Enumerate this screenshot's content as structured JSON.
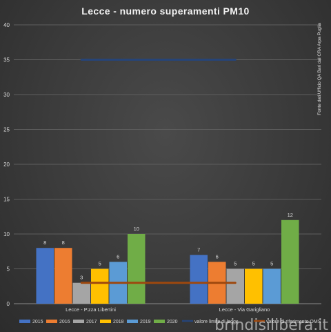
{
  "chart_data": {
    "type": "bar",
    "title": "Lecce - numero superamenti PM10",
    "categories": [
      "Lecce - P.zza Libertini",
      "Lecce - Via Garigliano"
    ],
    "series": [
      {
        "name": "2015",
        "color": "#4472c4",
        "values": [
          8,
          7
        ]
      },
      {
        "name": "2016",
        "color": "#ed7d31",
        "values": [
          8,
          6
        ]
      },
      {
        "name": "2017",
        "color": "#a5a5a5",
        "values": [
          3,
          5
        ]
      },
      {
        "name": "2018",
        "color": "#ffc000",
        "values": [
          5,
          5
        ]
      },
      {
        "name": "2019",
        "color": "#5b9bd5",
        "values": [
          6,
          5
        ]
      },
      {
        "name": "2020",
        "color": "#70ad47",
        "values": [
          10,
          12
        ]
      }
    ],
    "reference_lines": [
      {
        "name": "valore limite di legge",
        "value": 35,
        "color": "#264478"
      },
      {
        "name": "valore di riferimento OMS",
        "value": 3,
        "color": "#9e480e"
      }
    ],
    "ylim": [
      0,
      40
    ],
    "yticks": [
      0,
      5,
      10,
      15,
      20,
      25,
      30,
      35,
      40
    ],
    "grid": true,
    "legend_position": "bottom",
    "source_note": "Fonte dati Ufficio QA Bari dal CRA Arpa Puglia"
  },
  "watermark": "brindisilibera.it"
}
